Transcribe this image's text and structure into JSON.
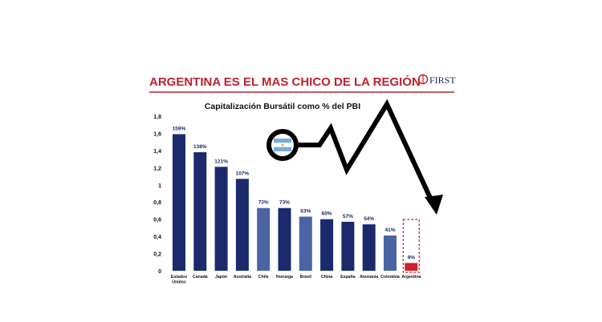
{
  "slide": {
    "headline": "ARGENTINA ES EL MAS CHICO DE LA REGIÓN",
    "logo_text": "FIRST",
    "colors": {
      "headline": "#c0222c",
      "rule": "#c0222c",
      "bar_dark": "#1a2a6c",
      "bar_light": "#4a63a3",
      "bar_highlight": "#d0202a",
      "arrow": "#000000",
      "flag_blue": "#74acdf"
    },
    "flag_icon": "argentina-flag-icon"
  },
  "chart_data": {
    "type": "bar",
    "title": "Capitalización Bursátil como % del PBI",
    "categories": [
      "Estados Unidos",
      "Canadá",
      "Japón",
      "Australia",
      "Chile",
      "Noruega",
      "Brasil",
      "China",
      "España",
      "Alemania",
      "Colombia",
      "Argentina"
    ],
    "values": [
      1.59,
      1.38,
      1.21,
      1.07,
      0.73,
      0.73,
      0.63,
      0.6,
      0.57,
      0.54,
      0.41,
      0.09
    ],
    "data_labels": [
      "159%",
      "138%",
      "121%",
      "107%",
      "73%",
      "73%",
      "63%",
      "60%",
      "57%",
      "54%",
      "41%",
      "9%"
    ],
    "bar_shade": [
      "dark",
      "dark",
      "dark",
      "dark",
      "light",
      "dark",
      "light",
      "dark",
      "dark",
      "dark",
      "light",
      "highlight"
    ],
    "y_ticks": [
      "0",
      "0,2",
      "0,4",
      "0,6",
      "0,8",
      "1",
      "1,2",
      "1,4",
      "1,6",
      "1,8"
    ],
    "ylim": [
      0,
      1.8
    ],
    "grid": false,
    "legend": "none",
    "highlight_category": "Argentina"
  }
}
